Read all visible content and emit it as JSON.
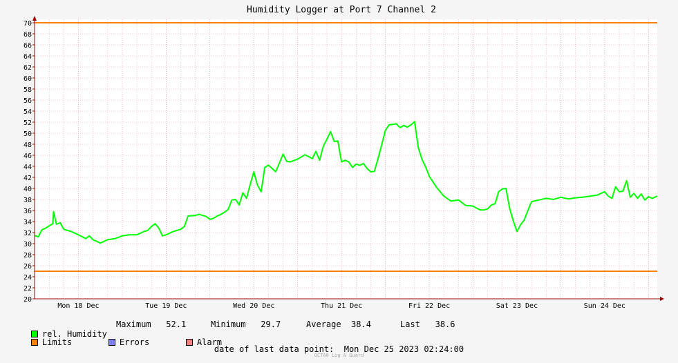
{
  "chart_data": {
    "type": "line",
    "title": "Humidity Logger at Port 7 Channel 2",
    "ylim": [
      20,
      70
    ],
    "ytick_step": 2,
    "x_day_labels": [
      "Mon 18 Dec",
      "Tue 19 Dec",
      "Wed 20 Dec",
      "Thu 21 Dec",
      "Fri 22 Dec",
      "Sat 23 Dec",
      "Sun 24 Dec"
    ],
    "x_hours_total": 170.4,
    "limits": {
      "upper": 70,
      "lower": 25
    },
    "grid": true,
    "series": [
      {
        "name": "rel. Humidity",
        "color": "#00ff00",
        "x_hours": [
          0,
          1,
          2,
          3,
          4,
          5,
          5.2,
          6,
          7,
          8,
          10,
          12,
          14,
          15,
          16,
          18,
          20,
          22,
          24,
          26,
          28,
          30,
          31,
          32,
          33,
          34,
          35,
          36,
          38,
          40,
          41,
          42,
          44,
          45,
          46,
          47,
          48,
          49,
          50,
          51,
          52,
          53,
          54,
          55,
          56,
          57,
          58,
          59,
          60,
          61,
          62,
          63,
          64,
          66,
          68,
          69,
          70,
          72,
          74,
          76,
          77,
          78,
          79,
          80,
          81,
          82,
          83,
          84,
          85,
          86,
          87,
          88,
          89,
          90,
          91,
          92,
          93,
          94,
          95,
          96,
          97,
          98,
          99,
          100,
          101,
          102,
          103,
          104,
          105,
          106,
          107,
          108,
          110,
          112,
          114,
          116,
          118,
          120,
          121,
          122,
          123,
          124,
          125,
          126,
          127,
          128,
          129,
          130,
          131,
          132,
          133,
          134,
          135,
          136,
          138,
          140,
          142,
          144,
          146,
          148,
          150,
          152,
          154,
          156,
          157,
          158,
          159,
          160,
          161,
          162,
          163,
          164,
          165,
          166,
          167,
          168,
          169,
          170.4
        ],
        "values": [
          31.5,
          31.2,
          32.5,
          32.8,
          33.2,
          33.6,
          35.8,
          33.5,
          33.8,
          32.6,
          32.2,
          31.6,
          30.9,
          31.4,
          30.7,
          30.1,
          30.7,
          30.9,
          31.4,
          31.6,
          31.6,
          32.2,
          32.4,
          33.1,
          33.6,
          32.8,
          31.4,
          31.6,
          32.2,
          32.6,
          33.1,
          35.0,
          35.1,
          35.3,
          35.1,
          34.9,
          34.4,
          34.6,
          35.0,
          35.3,
          35.7,
          36.2,
          37.9,
          38.0,
          37.0,
          39.2,
          38.2,
          40.7,
          43.0,
          40.6,
          39.4,
          43.8,
          44.2,
          43.0,
          46.2,
          44.9,
          44.8,
          45.3,
          46.1,
          45.4,
          46.7,
          45.1,
          47.6,
          48.9,
          50.3,
          48.5,
          48.6,
          44.8,
          45.1,
          44.8,
          43.8,
          44.4,
          44.2,
          44.5,
          43.6,
          43.0,
          43.1,
          45.4,
          47.9,
          50.5,
          51.5,
          51.6,
          51.7,
          51.0,
          51.4,
          51.1,
          51.5,
          52.1,
          47.4,
          45.3,
          43.9,
          42.2,
          40.2,
          38.6,
          37.7,
          37.9,
          36.9,
          36.8,
          36.4,
          36.1,
          36.1,
          36.3,
          37.0,
          37.2,
          39.4,
          39.9,
          40.0,
          36.4,
          34.1,
          32.2,
          33.4,
          34.3,
          36.0,
          37.6,
          37.9,
          38.2,
          38.0,
          38.4,
          38.1,
          38.3,
          38.4,
          38.6,
          38.8,
          39.4,
          38.6,
          38.2,
          40.3,
          39.4,
          39.5,
          41.4,
          38.4,
          39.1,
          38.2,
          39.0,
          37.9,
          38.5,
          38.2,
          38.6
        ]
      }
    ]
  },
  "legend": {
    "series_label": "rel. Humidity",
    "maximum_label": "Maximum",
    "maximum_value": "52.1",
    "minimum_label": "Minimum",
    "minimum_value": "29.7",
    "average_label": "Average",
    "average_value": "38.4",
    "last_label": "Last",
    "last_value": "38.6",
    "limits_label": "Limits",
    "errors_label": "Errors",
    "alarm_label": "Alarm"
  },
  "colors": {
    "humidity": "#00ff00",
    "limits": "#ff7f00",
    "errors": "#7f7fff",
    "alarm": "#ff7f7f",
    "axis": "#990000"
  },
  "footer": {
    "last_point_label": "date of last data point:",
    "last_point_value": "Mon Dec 25 2023 02:24:00",
    "watermark": "OCTA6 Log & Guard"
  }
}
